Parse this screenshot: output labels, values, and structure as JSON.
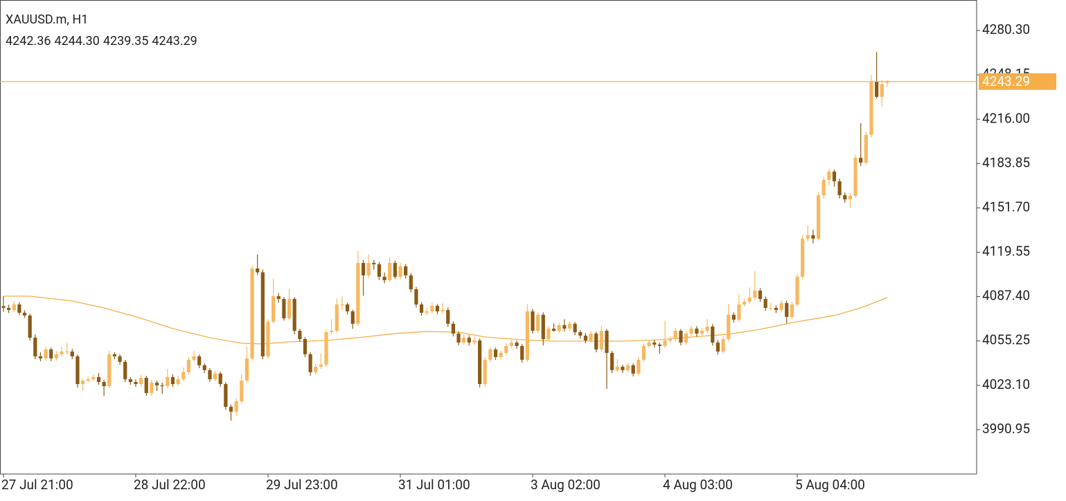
{
  "chart_data": {
    "type": "candlestick",
    "title": "XAUUSD.m, H1",
    "ohlc_labels": [
      "4242.36",
      "4244.30",
      "4239.35",
      "4243.29"
    ],
    "bull_color": "#f7b860",
    "bear_color": "#8a5a16",
    "ohlc": [
      [
        4080.5,
        4087.7,
        4076.5,
        4079.2
      ],
      [
        4079.2,
        4081.5,
        4075.5,
        4077.7
      ],
      [
        4077.7,
        4084,
        4076,
        4081.7
      ],
      [
        4081.7,
        4083.5,
        4074,
        4075.7
      ],
      [
        4075.7,
        4077.5,
        4072,
        4073.7
      ],
      [
        4073.7,
        4075,
        4055.5,
        4057.6
      ],
      [
        4057.6,
        4060,
        4042,
        4044.1
      ],
      [
        4044.1,
        4047,
        4040.5,
        4042.6
      ],
      [
        4042.6,
        4051,
        4041,
        4049.1
      ],
      [
        4049.1,
        4050.5,
        4040.5,
        4042.6
      ],
      [
        4042.6,
        4048,
        4041,
        4045.6
      ],
      [
        4045.6,
        4051,
        4044,
        4047.6
      ],
      [
        4047.6,
        4054,
        4045.5,
        4047.6
      ],
      [
        4047.6,
        4049.5,
        4042,
        4044.1
      ],
      [
        4044.1,
        4045.5,
        4021.5,
        4024.0
      ],
      [
        4024.0,
        4028,
        4019,
        4026.5
      ],
      [
        4026.5,
        4029.5,
        4025,
        4027.5
      ],
      [
        4027.5,
        4031,
        4026,
        4029.1
      ],
      [
        4029.1,
        4032,
        4023.5,
        4025.5
      ],
      [
        4025.5,
        4027,
        4015.5,
        4022.5
      ],
      [
        4022.5,
        4048,
        4021,
        4045.6
      ],
      [
        4045.6,
        4047,
        4042,
        4044.1
      ],
      [
        4044.1,
        4045.5,
        4038,
        4040.1
      ],
      [
        4040.1,
        4041.5,
        4025.5,
        4027.5
      ],
      [
        4027.5,
        4029,
        4023.5,
        4025.5
      ],
      [
        4025.5,
        4027.5,
        4022,
        4024.0
      ],
      [
        4024.0,
        4030.5,
        4022.5,
        4028.5
      ],
      [
        4028.5,
        4030,
        4015.5,
        4017.5
      ],
      [
        4017.5,
        4027,
        4015.5,
        4025.0
      ],
      [
        4025.0,
        4026.5,
        4019,
        4023.0
      ],
      [
        4023.0,
        4025,
        4017,
        4022.5
      ],
      [
        4022.5,
        4035,
        4021,
        4029.1
      ],
      [
        4029.1,
        4031,
        4022,
        4024.0
      ],
      [
        4024.0,
        4030,
        4022.5,
        4027.5
      ],
      [
        4027.5,
        4036,
        4026,
        4032.6
      ],
      [
        4032.6,
        4043.5,
        4031,
        4041.6
      ],
      [
        4041.6,
        4048,
        4040,
        4044.1
      ],
      [
        4044.1,
        4045.5,
        4035.5,
        4037.6
      ],
      [
        4037.6,
        4039,
        4032,
        4034.1
      ],
      [
        4034.1,
        4035.5,
        4025.5,
        4027.5
      ],
      [
        4027.5,
        4033.5,
        4026,
        4031.6
      ],
      [
        4031.6,
        4033,
        4022,
        4024.0
      ],
      [
        4024.0,
        4025.5,
        4005.5,
        4007.5
      ],
      [
        4007.5,
        4009,
        3997.5,
        4004.0
      ],
      [
        4004.0,
        4013.5,
        4001,
        4011.5
      ],
      [
        4011.5,
        4031,
        4010,
        4026.5
      ],
      [
        4026.5,
        4051,
        4025,
        4042.6
      ],
      [
        4042.6,
        4110,
        4041,
        4107.8
      ],
      [
        4107.8,
        4118,
        4103,
        4105.0
      ],
      [
        4105.0,
        4107,
        4042,
        4044.1
      ],
      [
        4044.1,
        4071,
        4042.5,
        4069.2
      ],
      [
        4069.2,
        4100.5,
        4068,
        4087.7
      ],
      [
        4087.7,
        4090,
        4083,
        4085.7
      ],
      [
        4085.7,
        4087,
        4070,
        4071.7
      ],
      [
        4071.7,
        4093,
        4070,
        4085.7
      ],
      [
        4085.7,
        4087,
        4060,
        4062.6
      ],
      [
        4062.6,
        4064,
        4054.5,
        4056.6
      ],
      [
        4056.6,
        4058,
        4043.5,
        4045.6
      ],
      [
        4045.6,
        4047,
        4030,
        4032.6
      ],
      [
        4032.6,
        4038.5,
        4031,
        4036.6
      ],
      [
        4036.6,
        4046,
        4035,
        4038.1
      ],
      [
        4038.1,
        4063.5,
        4036.5,
        4061.6
      ],
      [
        4061.6,
        4071,
        4060,
        4062.6
      ],
      [
        4062.6,
        4086,
        4061,
        4081.7
      ],
      [
        4081.7,
        4088,
        4078,
        4081.7
      ],
      [
        4081.7,
        4083,
        4074.5,
        4076.7
      ],
      [
        4076.7,
        4078,
        4064,
        4067.7
      ],
      [
        4067.7,
        4120.3,
        4066,
        4111.8
      ],
      [
        4111.8,
        4114,
        4088,
        4102.8
      ],
      [
        4102.8,
        4118,
        4101,
        4111.8
      ],
      [
        4111.8,
        4114,
        4107,
        4110.8
      ],
      [
        4110.8,
        4112.5,
        4099.5,
        4101.8
      ],
      [
        4101.8,
        4105,
        4097,
        4099.3
      ],
      [
        4099.3,
        4116,
        4098,
        4111.8
      ],
      [
        4111.8,
        4113.5,
        4100,
        4101.8
      ],
      [
        4101.8,
        4112,
        4100,
        4109.3
      ],
      [
        4109.3,
        4111,
        4100.5,
        4102.8
      ],
      [
        4102.8,
        4104.5,
        4090.5,
        4092.7
      ],
      [
        4092.7,
        4094.5,
        4079.5,
        4081.7
      ],
      [
        4081.7,
        4083.5,
        4073.5,
        4075.7
      ],
      [
        4075.7,
        4079,
        4074,
        4076.7
      ],
      [
        4076.7,
        4083,
        4075,
        4080.7
      ],
      [
        4080.7,
        4082,
        4074.5,
        4076.7
      ],
      [
        4076.7,
        4082.5,
        4075,
        4077.7
      ],
      [
        4077.7,
        4079.5,
        4065.5,
        4067.7
      ],
      [
        4067.7,
        4069.5,
        4058.5,
        4060.6
      ],
      [
        4060.6,
        4062,
        4052,
        4054.1
      ],
      [
        4054.1,
        4060,
        4052.5,
        4057.6
      ],
      [
        4057.6,
        4059.5,
        4052,
        4054.1
      ],
      [
        4054.1,
        4058.5,
        4052.5,
        4055.6
      ],
      [
        4055.6,
        4057,
        4021.5,
        4024.0
      ],
      [
        4024.0,
        4043.5,
        4022,
        4041.6
      ],
      [
        4041.6,
        4051,
        4040,
        4049.1
      ],
      [
        4049.1,
        4050.5,
        4041.5,
        4043.6
      ],
      [
        4043.6,
        4048.5,
        4042,
        4046.6
      ],
      [
        4046.6,
        4053.5,
        4045,
        4051.6
      ],
      [
        4051.6,
        4056,
        4050,
        4054.1
      ],
      [
        4054.1,
        4055.5,
        4049.5,
        4051.6
      ],
      [
        4051.6,
        4053,
        4039.5,
        4041.6
      ],
      [
        4041.6,
        4082,
        4040,
        4076.7
      ],
      [
        4076.7,
        4078.5,
        4060.5,
        4062.6
      ],
      [
        4062.6,
        4076,
        4061,
        4074.2
      ],
      [
        4074.2,
        4076,
        4052,
        4056.6
      ],
      [
        4056.6,
        4066,
        4055,
        4064.2
      ],
      [
        4064.2,
        4068,
        4062,
        4062.6
      ],
      [
        4062.6,
        4068.5,
        4061,
        4066.7
      ],
      [
        4066.7,
        4071,
        4062,
        4064.2
      ],
      [
        4064.2,
        4069.5,
        4062.5,
        4067.7
      ],
      [
        4067.7,
        4069,
        4059.5,
        4061.6
      ],
      [
        4061.6,
        4063,
        4057,
        4059.1
      ],
      [
        4059.1,
        4061,
        4053.5,
        4055.6
      ],
      [
        4055.6,
        4062.5,
        4054,
        4060.6
      ],
      [
        4060.6,
        4062,
        4047,
        4049.1
      ],
      [
        4049.1,
        4066,
        4047.5,
        4062.6
      ],
      [
        4062.6,
        4064,
        4020.5,
        4046.6
      ],
      [
        4046.6,
        4048,
        4032,
        4034.1
      ],
      [
        4034.1,
        4042,
        4032.5,
        4036.6
      ],
      [
        4036.6,
        4038,
        4032,
        4034.1
      ],
      [
        4034.1,
        4039.5,
        4032.5,
        4037.6
      ],
      [
        4037.6,
        4039,
        4029.5,
        4031.6
      ],
      [
        4031.6,
        4043.5,
        4030,
        4041.6
      ],
      [
        4041.6,
        4053.5,
        4040,
        4051.6
      ],
      [
        4051.6,
        4056,
        4050,
        4054.1
      ],
      [
        4054.1,
        4056,
        4050.5,
        4052.6
      ],
      [
        4052.6,
        4054,
        4046,
        4051.6
      ],
      [
        4051.6,
        4070,
        4050,
        4055.6
      ],
      [
        4055.6,
        4058.5,
        4054,
        4056.6
      ],
      [
        4056.6,
        4064.5,
        4055,
        4062.6
      ],
      [
        4062.6,
        4064,
        4052,
        4054.1
      ],
      [
        4054.1,
        4062.5,
        4052.5,
        4060.6
      ],
      [
        4060.6,
        4066,
        4059,
        4064.2
      ],
      [
        4064.2,
        4066,
        4058.5,
        4060.6
      ],
      [
        4060.6,
        4064.5,
        4059,
        4062.6
      ],
      [
        4062.6,
        4071,
        4061,
        4065.7
      ],
      [
        4065.7,
        4067.5,
        4052,
        4054.1
      ],
      [
        4054.1,
        4056,
        4045.5,
        4047.6
      ],
      [
        4047.6,
        4058.5,
        4046,
        4056.6
      ],
      [
        4056.6,
        4082,
        4055,
        4074.2
      ],
      [
        4074.2,
        4076,
        4068.5,
        4070.7
      ],
      [
        4070.7,
        4089,
        4069,
        4081.7
      ],
      [
        4081.7,
        4086,
        4080,
        4083.7
      ],
      [
        4083.7,
        4094,
        4082,
        4086.7
      ],
      [
        4086.7,
        4105.8,
        4085,
        4091.7
      ],
      [
        4091.7,
        4093.5,
        4083.5,
        4085.7
      ],
      [
        4085.7,
        4087.5,
        4077,
        4079.2
      ],
      [
        4079.2,
        4083,
        4077.5,
        4079.2
      ],
      [
        4079.2,
        4081,
        4075.5,
        4077.7
      ],
      [
        4077.7,
        4085,
        4076,
        4082.7
      ],
      [
        4082.7,
        4084.5,
        4068,
        4072.7
      ],
      [
        4072.7,
        4083.5,
        4071,
        4081.7
      ],
      [
        4081.7,
        4104,
        4080,
        4101.8
      ],
      [
        4101.8,
        4132,
        4100,
        4129.4
      ],
      [
        4129.4,
        4139,
        4127.5,
        4131.9
      ],
      [
        4131.9,
        4136,
        4126,
        4129.4
      ],
      [
        4129.4,
        4163,
        4128,
        4160.9
      ],
      [
        4160.9,
        4174,
        4158.5,
        4172.0
      ],
      [
        4172.0,
        4180,
        4168,
        4178.0
      ],
      [
        4178.0,
        4179.5,
        4167,
        4171.0
      ],
      [
        4171.0,
        4173,
        4158.5,
        4160.9
      ],
      [
        4160.9,
        4163,
        4155.5,
        4157.9
      ],
      [
        4157.9,
        4162.5,
        4152,
        4160.4
      ],
      [
        4160.4,
        4190,
        4159,
        4188.0
      ],
      [
        4188.0,
        4213.1,
        4182,
        4184.5
      ],
      [
        4184.5,
        4207,
        4183,
        4204.6
      ],
      [
        4204.6,
        4248,
        4203,
        4243.2
      ],
      [
        4243.2,
        4264.8,
        4231,
        4232.2
      ],
      [
        4232.2,
        4244.5,
        4225,
        4241.2
      ],
      [
        4242.36,
        4244.3,
        4239.35,
        4243.29
      ]
    ],
    "ma": {
      "color": "#f5ae48",
      "x": [
        0,
        5,
        13,
        19,
        26,
        32,
        39,
        45,
        49,
        54,
        61,
        67,
        74,
        80,
        86,
        91,
        98,
        104,
        111,
        117,
        124,
        130,
        137,
        143,
        150,
        157,
        162,
        167
      ],
      "values": [
        4087.7,
        4087.7,
        4084.2,
        4079.2,
        4071.7,
        4064.2,
        4057.6,
        4053.6,
        4053.1,
        4054.6,
        4055.6,
        4057.6,
        4060.6,
        4062.1,
        4061.6,
        4058.1,
        4056.1,
        4055.1,
        4055.1,
        4055.1,
        4056.1,
        4058.1,
        4060.1,
        4063.7,
        4069.2,
        4073.7,
        4079.2,
        4086.7
      ]
    },
    "price_line_color": "#f5ae48",
    "xlim": [
      -0.65,
      183.9
    ],
    "xticks": [
      {
        "value": 0,
        "label": "27 Jul 21:00"
      },
      {
        "value": 25,
        "label": "28 Jul 22:00"
      },
      {
        "value": 50,
        "label": "29 Jul 23:00"
      },
      {
        "value": 75,
        "label": "31 Jul 01:00"
      },
      {
        "value": 100,
        "label": "3 Aug 02:00"
      },
      {
        "value": 125,
        "label": "4 Aug 03:00"
      },
      {
        "value": 150,
        "label": "5 Aug 04:00"
      }
    ],
    "ylim": [
      3958.8,
      4302.4
    ],
    "yticks": [
      {
        "value": 4280.3,
        "label": "4280.30"
      },
      4248.15,
      {
        "value": 4216.0,
        "label": "4216.00"
      },
      4183.85,
      {
        "value": 4151.7,
        "label": "4151.70"
      },
      4119.55,
      {
        "value": 4087.4,
        "label": "4087.40"
      },
      4055.25,
      {
        "value": 4023.1,
        "label": "4023.10"
      },
      3990.95
    ]
  }
}
